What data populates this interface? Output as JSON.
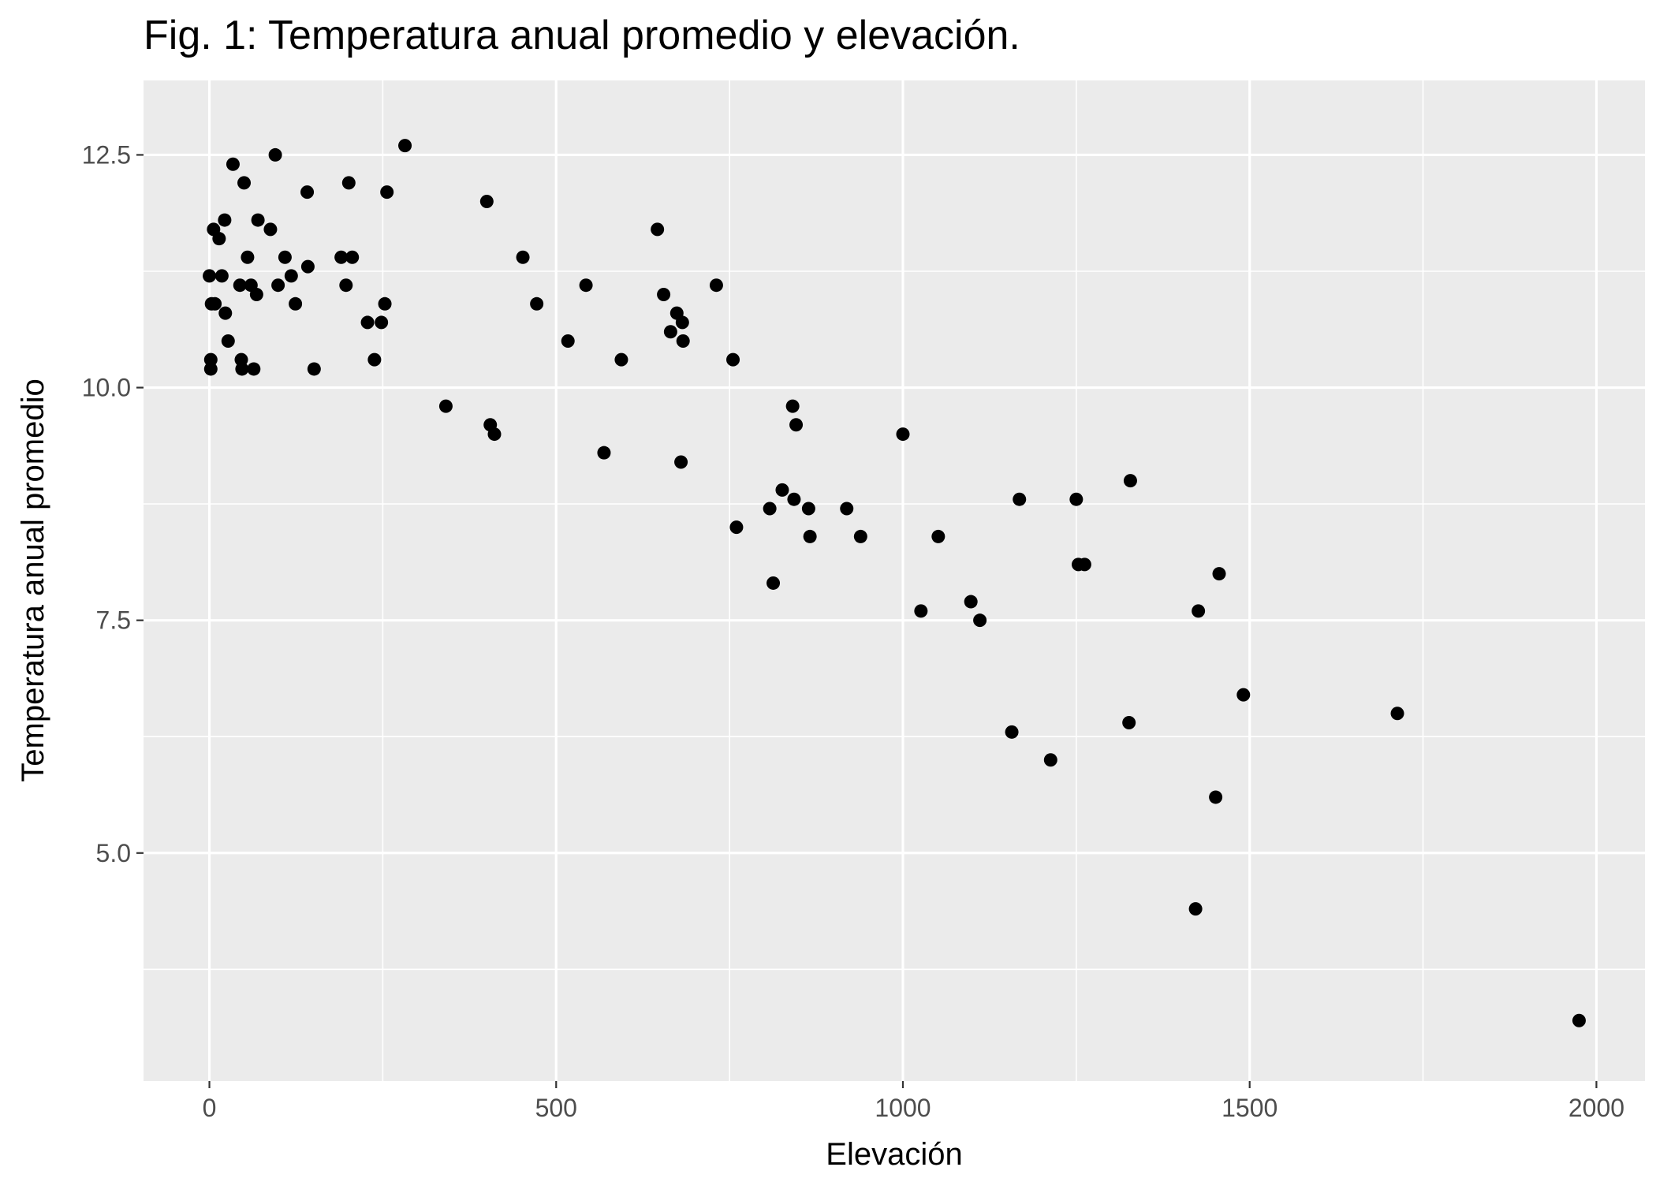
{
  "chart_data": {
    "type": "scatter",
    "title": "Fig. 1: Temperatura anual promedio y elevación.",
    "xlabel": "Elevación",
    "ylabel": "Temperatura anual promedio",
    "xlim": [
      -95,
      2070
    ],
    "ylim": [
      2.55,
      13.3
    ],
    "x_ticks": [
      0,
      500,
      1000,
      1500,
      2000
    ],
    "x_tick_labels": [
      "0",
      "500",
      "1000",
      "1500",
      "2000"
    ],
    "x_minor": [
      250,
      750,
      1250,
      1750
    ],
    "y_ticks": [
      5.0,
      7.5,
      10.0,
      12.5
    ],
    "y_tick_labels": [
      "5.0",
      "7.5",
      "10.0",
      "12.5"
    ],
    "y_minor": [
      3.75,
      6.25,
      8.75,
      11.25
    ],
    "grid": true,
    "panel_color": "#ebebeb",
    "point_color": "#000000",
    "points": [
      [
        0,
        11.2
      ],
      [
        2,
        10.3
      ],
      [
        2,
        10.2
      ],
      [
        3,
        10.9
      ],
      [
        6,
        11.7
      ],
      [
        8,
        10.9
      ],
      [
        14,
        11.6
      ],
      [
        18,
        11.2
      ],
      [
        22,
        11.8
      ],
      [
        23,
        10.8
      ],
      [
        27,
        10.5
      ],
      [
        34,
        12.4
      ],
      [
        44,
        11.1
      ],
      [
        46,
        10.3
      ],
      [
        47,
        10.2
      ],
      [
        50,
        12.2
      ],
      [
        55,
        11.4
      ],
      [
        60,
        11.1
      ],
      [
        64,
        10.2
      ],
      [
        68,
        11.0
      ],
      [
        70,
        11.8
      ],
      [
        88,
        11.7
      ],
      [
        95,
        12.5
      ],
      [
        99,
        11.1
      ],
      [
        109,
        11.4
      ],
      [
        118,
        11.2
      ],
      [
        124,
        10.9
      ],
      [
        141,
        12.1
      ],
      [
        142,
        11.3
      ],
      [
        151,
        10.2
      ],
      [
        190,
        11.4
      ],
      [
        197,
        11.1
      ],
      [
        201,
        12.2
      ],
      [
        206,
        11.4
      ],
      [
        228,
        10.7
      ],
      [
        238,
        10.3
      ],
      [
        248,
        10.7
      ],
      [
        253,
        10.9
      ],
      [
        256,
        12.1
      ],
      [
        282,
        12.6
      ],
      [
        341,
        9.8
      ],
      [
        400,
        12.0
      ],
      [
        405,
        9.6
      ],
      [
        411,
        9.5
      ],
      [
        452,
        11.4
      ],
      [
        472,
        10.9
      ],
      [
        517,
        10.5
      ],
      [
        543,
        11.1
      ],
      [
        569,
        9.3
      ],
      [
        594,
        10.3
      ],
      [
        646,
        11.7
      ],
      [
        655,
        11.0
      ],
      [
        665,
        10.6
      ],
      [
        674,
        10.8
      ],
      [
        680,
        9.2
      ],
      [
        682,
        10.7
      ],
      [
        683,
        10.5
      ],
      [
        731,
        11.1
      ],
      [
        755,
        10.3
      ],
      [
        760,
        8.5
      ],
      [
        808,
        8.7
      ],
      [
        813,
        7.9
      ],
      [
        826,
        8.9
      ],
      [
        841,
        9.8
      ],
      [
        843,
        8.8
      ],
      [
        846,
        9.6
      ],
      [
        864,
        8.7
      ],
      [
        866,
        8.4
      ],
      [
        919,
        8.7
      ],
      [
        939,
        8.4
      ],
      [
        1000,
        9.5
      ],
      [
        1026,
        7.6
      ],
      [
        1051,
        8.4
      ],
      [
        1098,
        7.7
      ],
      [
        1111,
        7.5
      ],
      [
        1157,
        6.3
      ],
      [
        1168,
        8.8
      ],
      [
        1213,
        6.0
      ],
      [
        1250,
        8.8
      ],
      [
        1253,
        8.1
      ],
      [
        1262,
        8.1
      ],
      [
        1326,
        6.4
      ],
      [
        1328,
        9.0
      ],
      [
        1422,
        4.4
      ],
      [
        1426,
        7.6
      ],
      [
        1451,
        5.6
      ],
      [
        1456,
        8.0
      ],
      [
        1491,
        6.7
      ],
      [
        1713,
        6.5
      ],
      [
        1975,
        3.2
      ]
    ]
  }
}
